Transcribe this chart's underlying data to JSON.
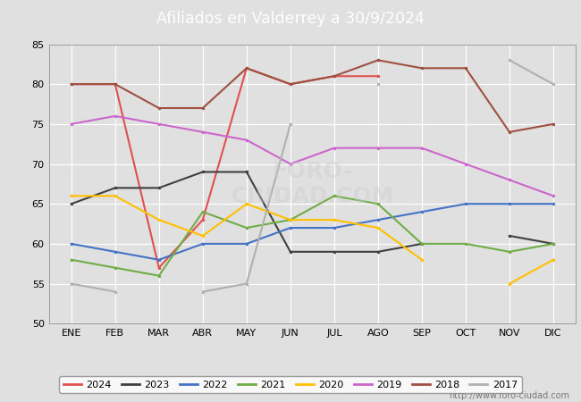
{
  "title": "Afiliados en Valderrey a 30/9/2024",
  "header_color": "#4a7ebf",
  "background_color": "#e0e0e0",
  "url": "http://www.foro-ciudad.com",
  "ylim": [
    50,
    85
  ],
  "yticks": [
    50,
    55,
    60,
    65,
    70,
    75,
    80,
    85
  ],
  "months": [
    "ENE",
    "FEB",
    "MAR",
    "ABR",
    "MAY",
    "JUN",
    "JUL",
    "AGO",
    "SEP",
    "OCT",
    "NOV",
    "DIC"
  ],
  "series": {
    "2024": {
      "color": "#e05050",
      "values": [
        80,
        80,
        null,
        null,
        null,
        null,
        null,
        null,
        null,
        null,
        null,
        null
      ],
      "partial": [
        80,
        80,
        57,
        63,
        82,
        80,
        81,
        81,
        null,
        null,
        null,
        null
      ]
    },
    "2023": {
      "color": "#404040",
      "values": [
        65,
        67,
        67,
        69,
        69,
        59,
        59,
        59,
        60,
        null,
        61,
        60
      ]
    },
    "2022": {
      "color": "#4472c4",
      "values": [
        60,
        59,
        58,
        60,
        60,
        62,
        62,
        63,
        64,
        65,
        65,
        65
      ]
    },
    "2021": {
      "color": "#70ad47",
      "values": [
        58,
        57,
        56,
        64,
        62,
        63,
        66,
        65,
        60,
        60,
        59,
        60
      ]
    },
    "2020": {
      "color": "#ffc000",
      "values": [
        66,
        66,
        63,
        61,
        65,
        63,
        63,
        62,
        58,
        null,
        55,
        58
      ]
    },
    "2019": {
      "color": "#cc66cc",
      "values": [
        75,
        76,
        75,
        74,
        73,
        70,
        72,
        72,
        72,
        70,
        68,
        66
      ]
    },
    "2018": {
      "color": "#a0522d",
      "values": [
        80,
        80,
        77,
        77,
        82,
        80,
        81,
        83,
        82,
        82,
        74,
        75
      ]
    },
    "2017": {
      "color": "#b0b0b0",
      "values": [
        55,
        54,
        null,
        54,
        55,
        75,
        null,
        80,
        null,
        null,
        83,
        80
      ]
    }
  }
}
